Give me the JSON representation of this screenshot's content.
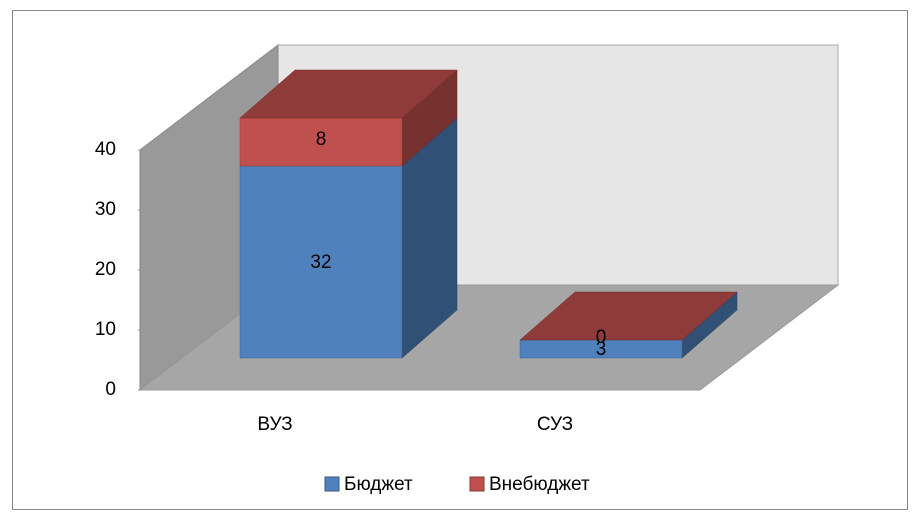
{
  "chart_data": {
    "type": "bar3d_stacked",
    "categories": [
      "ВУЗ",
      "СУЗ"
    ],
    "series": [
      {
        "name": "Бюджет",
        "color": "#4f81bd",
        "values": [
          32,
          3
        ]
      },
      {
        "name": "Внебюджет",
        "color": "#c0504d",
        "values": [
          8,
          0
        ]
      }
    ],
    "ylim": [
      0,
      40
    ],
    "yticks": [
      0,
      10,
      20,
      30,
      40
    ],
    "stacked": true,
    "legend": "bottom"
  }
}
